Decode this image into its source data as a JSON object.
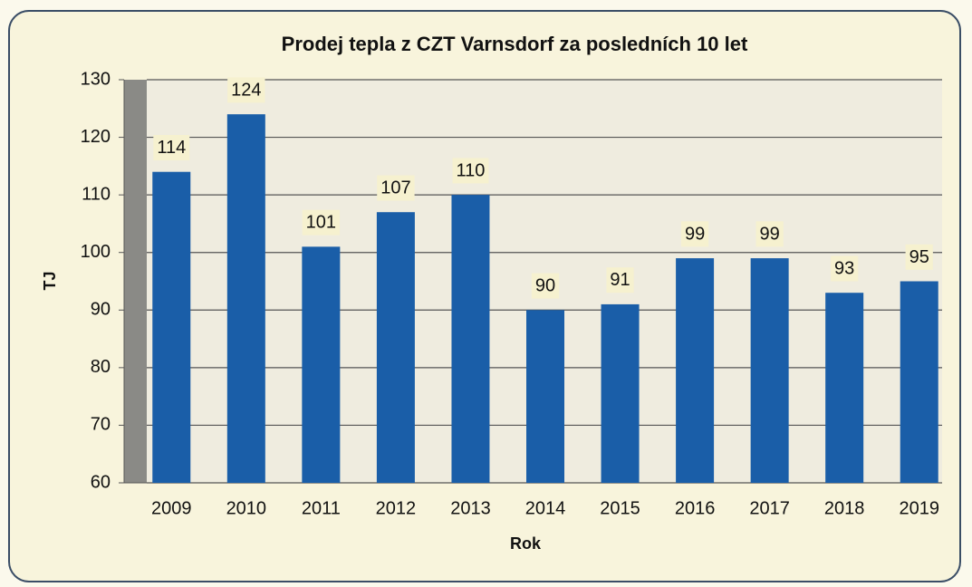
{
  "chart_data": {
    "type": "bar",
    "title": "Prodej tepla z CZT Varnsdorf za posledních 10 let",
    "x_label": "Rok",
    "y_label": "TJ",
    "categories": [
      "2009",
      "2010",
      "2011",
      "2012",
      "2013",
      "2014",
      "2015",
      "2016",
      "2017",
      "2018",
      "2019"
    ],
    "values": [
      114,
      124,
      101,
      107,
      110,
      90,
      91,
      99,
      99,
      93,
      95
    ],
    "color": "#1a5ea8",
    "ylim": [
      60,
      130
    ],
    "yticks": [
      60,
      70,
      80,
      90,
      100,
      110,
      120,
      130
    ],
    "grid": true
  }
}
